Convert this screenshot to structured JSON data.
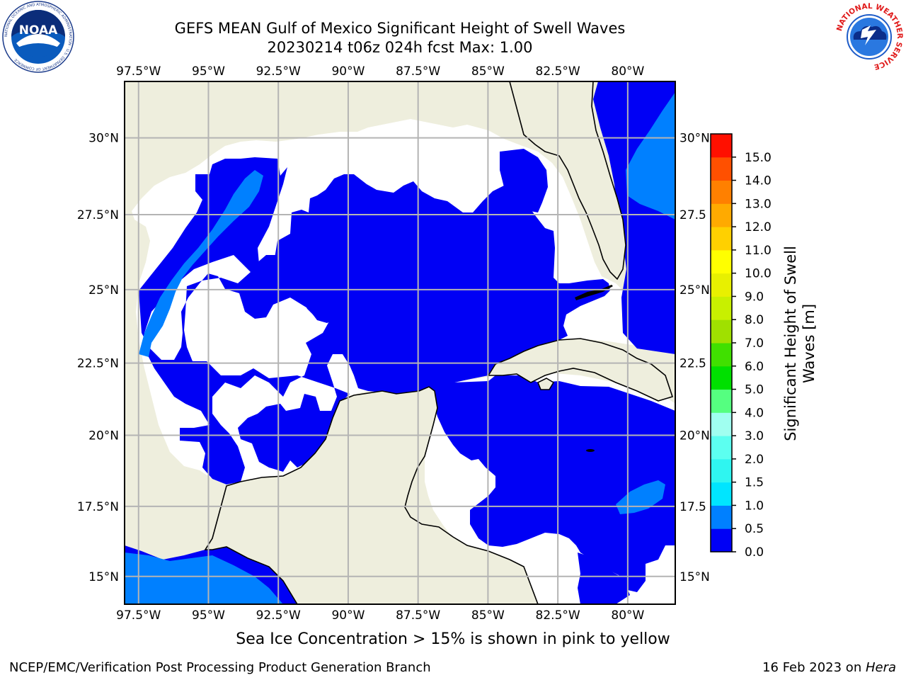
{
  "title": {
    "line1": "GEFS MEAN Gulf of Mexico Significant Height of Swell Waves",
    "line2": "20230214 t06z 024h fcst   Max: 1.00"
  },
  "logos": {
    "noaa": {
      "icon": "noaa-logo",
      "text": "NOAA",
      "ring_text": "NATIONAL OCEANIC AND ATMOSPHERIC ADMINISTRATION · U.S. DEPARTMENT OF COMMERCE"
    },
    "nws": {
      "icon": "nws-logo",
      "ring_text": "NATIONAL WEATHER SERVICE"
    }
  },
  "map": {
    "region": "Gulf of Mexico",
    "lon_ticks": [
      "97.5°W",
      "95°W",
      "92.5°W",
      "90°W",
      "87.5°W",
      "85°W",
      "82.5°W",
      "80°W"
    ],
    "lat_ticks_left": [
      "30°N",
      "27.5°N",
      "25°N",
      "22.5°N",
      "20°N",
      "17.5°N",
      "15°N"
    ],
    "lat_ticks_right": [
      "30°N",
      "27.5",
      "25°N",
      "22.5",
      "20°N",
      "17.5",
      "15°N"
    ],
    "lon_values": [
      -97.5,
      -95,
      -92.5,
      -90,
      -87.5,
      -85,
      -82.5,
      -80
    ],
    "lat_values": [
      30,
      27.5,
      25,
      22.5,
      20,
      17.5,
      15
    ],
    "extent": {
      "lon": [
        -98,
        -78.3
      ],
      "lat": [
        14,
        31.8
      ]
    },
    "grid": true,
    "colors": {
      "land": "#eeeedd",
      "sea_0_05": "#0000f5",
      "sea_05_1": "#0080ff",
      "no_data": "#ffffff",
      "grid": "#b4b4b4"
    }
  },
  "colorbar": {
    "label": "Significant Height of Swell Waves [m]",
    "label_line1": "Significant Height of Swell",
    "label_line2": "Waves [m]",
    "ticks": [
      "0.0",
      "0.5",
      "1.0",
      "1.5",
      "2.0",
      "3.0",
      "4.0",
      "5.0",
      "6.0",
      "7.0",
      "8.0",
      "9.0",
      "10.0",
      "11.0",
      "12.0",
      "13.0",
      "14.0",
      "15.0"
    ],
    "colors": [
      "#0000f5",
      "#0080ff",
      "#00e5ff",
      "#2ff5f0",
      "#5cfff0",
      "#a0fff0",
      "#55ff80",
      "#00e000",
      "#40e000",
      "#a0e000",
      "#c8f000",
      "#e8f000",
      "#ffff00",
      "#ffd000",
      "#ffaa00",
      "#ff8000",
      "#ff5000",
      "#ff1000"
    ]
  },
  "notes": {
    "ice": "Sea Ice Concentration > 15% is shown in pink to yellow",
    "credit": "NCEP/EMC/Verification Post Processing Product Generation Branch",
    "date": "16 Feb 2023 on ",
    "host": "Hera"
  }
}
